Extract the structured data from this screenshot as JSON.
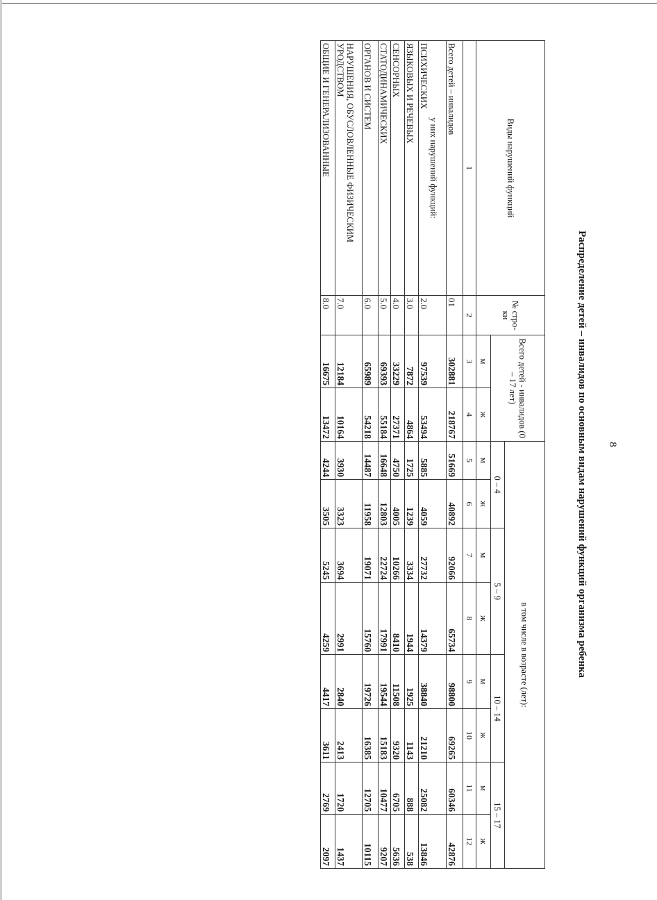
{
  "page_number": "8",
  "title": "Распределение детей – инвалидов по основным видам нарушений функций организма ребенка",
  "table": {
    "header": {
      "kind_col": "Виды нарушений функций",
      "row_no_col": "№ стро-ки",
      "total_col": "Всего детей - инвалидов (0 – 17 лет)",
      "age_group_col": "в том числе в возрасте (лет):",
      "age_groups": [
        "0 – 4",
        "5 – 9",
        "10 – 14",
        "15 – 17"
      ],
      "sex_m": "м",
      "sex_f": "ж",
      "col_numbers": [
        "1",
        "2",
        "3",
        "4",
        "5",
        "6",
        "7",
        "8",
        "9",
        "10",
        "11",
        "12"
      ]
    },
    "rows": [
      {
        "label": "Всего детей – инвалидов",
        "code": "01",
        "values": [
          "302881",
          "218767",
          "51669",
          "40892",
          "92066",
          "65734",
          "98800",
          "69265",
          "60346",
          "42876"
        ]
      },
      {
        "sublabel": "у них нарушений функций:",
        "label": "ПСИХИЧЕСКИХ",
        "code": "2.0",
        "values": [
          "97539",
          "53494",
          "5885",
          "4059",
          "27732",
          "14379",
          "38840",
          "21210",
          "25082",
          "13846"
        ]
      },
      {
        "label": "ЯЗЫКОВЫХ И РЕЧЕВЫХ",
        "code": "3.0",
        "values": [
          "7872",
          "4864",
          "1725",
          "1239",
          "3334",
          "1944",
          "1925",
          "1143",
          "888",
          "538"
        ]
      },
      {
        "label": "СЕНСОРНЫХ",
        "code": "4.0",
        "values": [
          "33229",
          "27371",
          "4750",
          "4005",
          "10266",
          "8410",
          "11508",
          "9320",
          "6705",
          "5636"
        ]
      },
      {
        "label": "СТАТОДИНАМИЧЕСКИХ",
        "code": "5.0",
        "values": [
          "69393",
          "55184",
          "16648",
          "12803",
          "22724",
          "17991",
          "19544",
          "15183",
          "10477",
          "9207"
        ]
      },
      {
        "label": "ОРГАНОВ И СИСТЕМ",
        "code": "6.0",
        "values": [
          "65989",
          "54218",
          "14487",
          "11958",
          "19071",
          "15760",
          "19726",
          "16385",
          "12705",
          "10115"
        ]
      },
      {
        "label": "НАРУШЕНИЯ, ОБУСЛОВЛЕННЫЕ ФИЗИЧЕСКИМ УРОДСТВОМ",
        "code": "7.0",
        "values": [
          "12184",
          "10164",
          "3930",
          "3323",
          "3694",
          "2991",
          "2840",
          "2413",
          "1720",
          "1437"
        ]
      },
      {
        "label": "ОБЩИЕ И ГЕНЕРАЛИЗОВАННЫЕ",
        "code": "8.0",
        "values": [
          "16675",
          "13472",
          "4244",
          "3505",
          "5245",
          "4259",
          "4417",
          "3611",
          "2769",
          "2097"
        ]
      }
    ]
  }
}
